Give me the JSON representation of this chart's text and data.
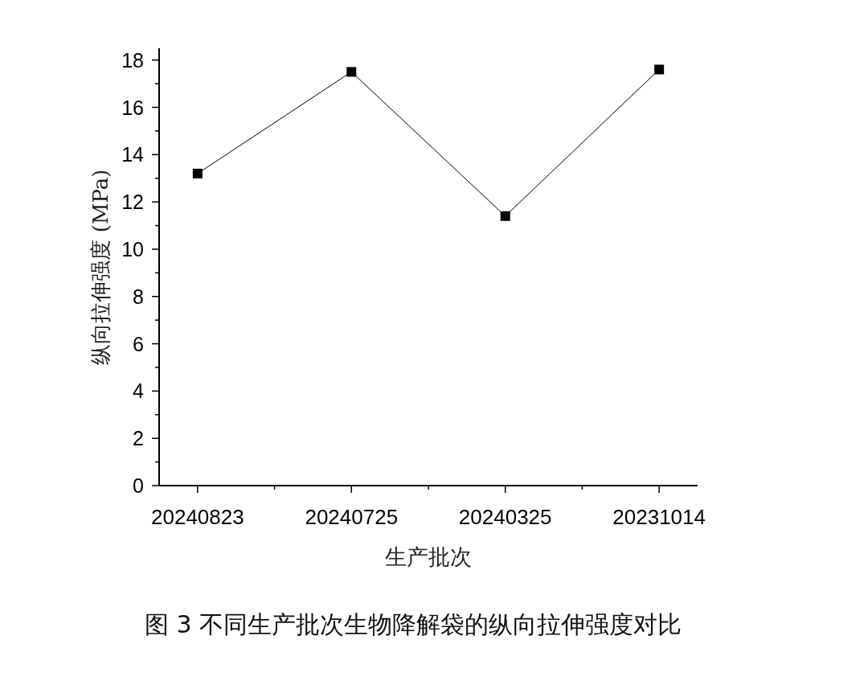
{
  "chart_data": {
    "type": "line",
    "title": "图 3 不同生产批次生物降解袋的纵向拉伸强度对比",
    "xlabel": "生产批次",
    "ylabel": "纵向拉伸强度 (MPa)",
    "categories": [
      "20240823",
      "20240725",
      "20240325",
      "20231014"
    ],
    "series": [
      {
        "color": "#000000",
        "values": [
          13.2,
          17.5,
          11.4,
          17.6
        ]
      }
    ],
    "ylim": [
      0,
      18.5
    ],
    "yticks": [
      0,
      2,
      4,
      6,
      8,
      10,
      12,
      14,
      16,
      18
    ],
    "marker": "square",
    "line_style": "solid"
  }
}
